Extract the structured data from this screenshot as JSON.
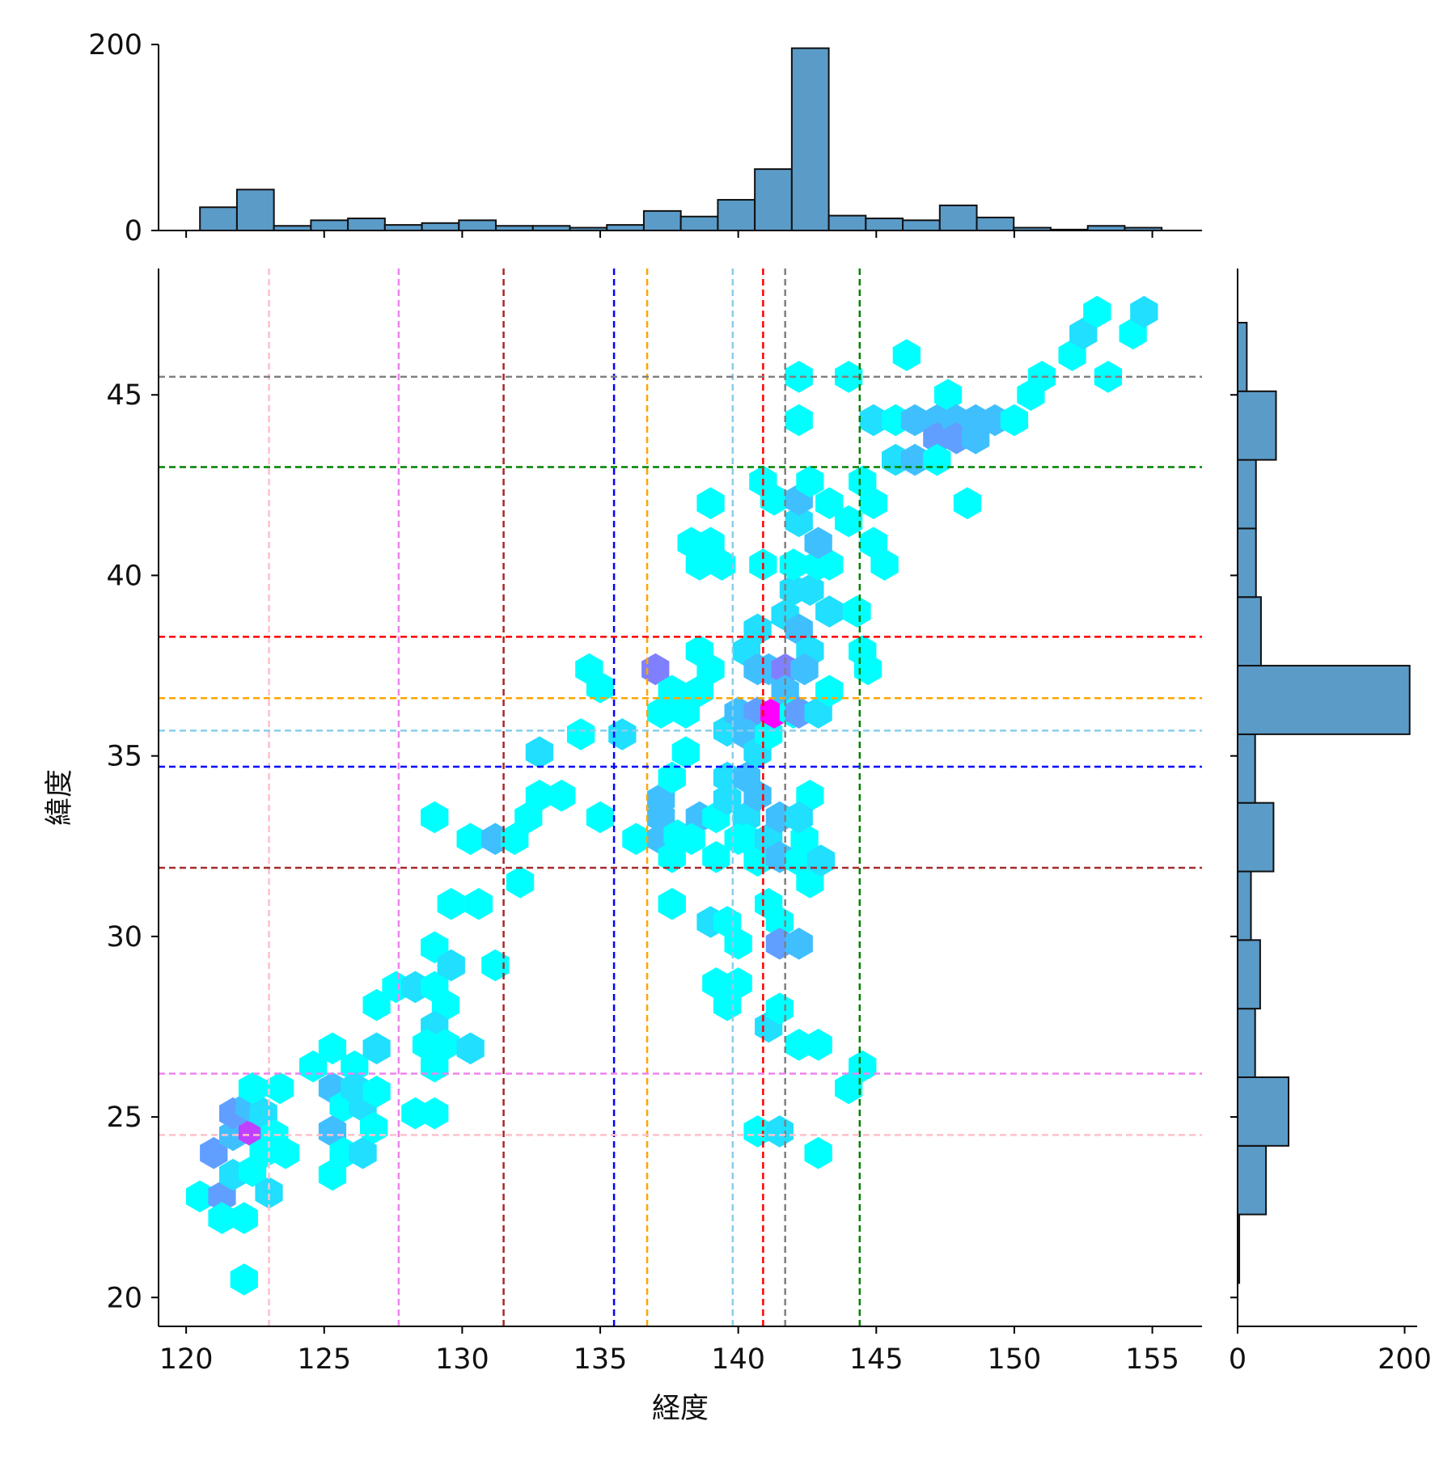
{
  "chart_data": {
    "type": "hexbin",
    "title": "",
    "xlabel": "経度",
    "ylabel": "緯度",
    "xlim": [
      119,
      156.8
    ],
    "ylim": [
      19.2,
      48.5
    ],
    "xticks": [
      120,
      125,
      130,
      135,
      140,
      145,
      150,
      155
    ],
    "yticks": [
      20,
      25,
      30,
      35,
      40,
      45
    ],
    "colormap": "cool",
    "colors": {
      "low": "#00ffff",
      "high": "#ff00ff",
      "hist": "#5b9bc8",
      "hist_edge": "#111111"
    },
    "grid": false,
    "legend": "none",
    "hexbin": {
      "hex_radius_lon": 0.58,
      "cells": [
        [
          120.5,
          22.8,
          1
        ],
        [
          121.3,
          22.8,
          4
        ],
        [
          122.1,
          22.2,
          1
        ],
        [
          121.3,
          22.2,
          1
        ],
        [
          121.7,
          23.4,
          2
        ],
        [
          121.0,
          24.0,
          4
        ],
        [
          121.7,
          24.5,
          3
        ],
        [
          122.4,
          24.6,
          7
        ],
        [
          121.7,
          25.1,
          4
        ],
        [
          122.3,
          25.3,
          3
        ],
        [
          122.8,
          25.1,
          2
        ],
        [
          122.4,
          25.8,
          1
        ],
        [
          123.4,
          25.8,
          1
        ],
        [
          122.8,
          24.0,
          1
        ],
        [
          123.6,
          24.0,
          1
        ],
        [
          123.2,
          24.5,
          1
        ],
        [
          122.4,
          23.5,
          1
        ],
        [
          123.0,
          22.9,
          2
        ],
        [
          122.1,
          20.5,
          1
        ],
        [
          124.6,
          26.4,
          1
        ],
        [
          125.3,
          26.9,
          1
        ],
        [
          125.3,
          25.8,
          3
        ],
        [
          125.7,
          25.3,
          1
        ],
        [
          125.3,
          24.6,
          3
        ],
        [
          125.7,
          24.0,
          1
        ],
        [
          125.3,
          23.4,
          1
        ],
        [
          126.1,
          26.4,
          1
        ],
        [
          126.1,
          25.8,
          2
        ],
        [
          126.4,
          25.3,
          2
        ],
        [
          126.4,
          24.0,
          2
        ],
        [
          126.9,
          25.7,
          1
        ],
        [
          126.8,
          24.7,
          1
        ],
        [
          126.9,
          26.9,
          2
        ],
        [
          126.9,
          28.1,
          1
        ],
        [
          127.6,
          28.6,
          1
        ],
        [
          128.3,
          28.6,
          2
        ],
        [
          129.0,
          28.6,
          1
        ],
        [
          129.4,
          28.1,
          1
        ],
        [
          129.0,
          27.5,
          2
        ],
        [
          128.7,
          27.0,
          1
        ],
        [
          129.4,
          27.0,
          1
        ],
        [
          129.0,
          26.4,
          1
        ],
        [
          130.3,
          26.9,
          2
        ],
        [
          128.3,
          25.1,
          1
        ],
        [
          129.0,
          25.1,
          1
        ],
        [
          129.0,
          29.7,
          1
        ],
        [
          129.6,
          29.2,
          2
        ],
        [
          131.2,
          29.2,
          1
        ],
        [
          129.6,
          30.9,
          1
        ],
        [
          130.6,
          30.9,
          1
        ],
        [
          129.0,
          33.3,
          1
        ],
        [
          130.3,
          32.7,
          1
        ],
        [
          131.2,
          32.7,
          3
        ],
        [
          131.9,
          32.7,
          1
        ],
        [
          132.1,
          31.5,
          1
        ],
        [
          132.4,
          33.3,
          1
        ],
        [
          132.8,
          33.9,
          1
        ],
        [
          133.6,
          33.9,
          1
        ],
        [
          132.8,
          35.1,
          2
        ],
        [
          134.3,
          35.6,
          1
        ],
        [
          135.0,
          33.3,
          1
        ],
        [
          134.6,
          37.4,
          1
        ],
        [
          135.0,
          36.9,
          1
        ],
        [
          135.8,
          35.6,
          2
        ],
        [
          136.3,
          32.7,
          1
        ],
        [
          137.0,
          37.4,
          5
        ],
        [
          137.2,
          36.2,
          1
        ],
        [
          137.6,
          36.8,
          1
        ],
        [
          137.2,
          33.8,
          3
        ],
        [
          137.2,
          33.3,
          3
        ],
        [
          137.2,
          32.7,
          3
        ],
        [
          137.6,
          32.2,
          1
        ],
        [
          137.8,
          32.8,
          1
        ],
        [
          137.6,
          34.4,
          1
        ],
        [
          137.6,
          30.9,
          1
        ],
        [
          138.1,
          36.2,
          1
        ],
        [
          138.6,
          36.8,
          1
        ],
        [
          138.6,
          37.9,
          1
        ],
        [
          139.0,
          37.4,
          1
        ],
        [
          138.1,
          35.1,
          1
        ],
        [
          138.6,
          33.3,
          3
        ],
        [
          138.3,
          32.7,
          1
        ],
        [
          139.2,
          33.3,
          1
        ],
        [
          139.2,
          32.2,
          1
        ],
        [
          138.3,
          40.9,
          1
        ],
        [
          139.0,
          40.9,
          1
        ],
        [
          138.6,
          40.3,
          1
        ],
        [
          139.4,
          40.3,
          1
        ],
        [
          139.0,
          42.0,
          1
        ],
        [
          139.0,
          30.4,
          2
        ],
        [
          139.6,
          35.7,
          2
        ],
        [
          140.0,
          36.2,
          3
        ],
        [
          139.6,
          34.4,
          2
        ],
        [
          140.3,
          34.4,
          3
        ],
        [
          139.6,
          33.8,
          2
        ],
        [
          140.3,
          33.3,
          2
        ],
        [
          140.7,
          33.9,
          3
        ],
        [
          139.6,
          30.4,
          1
        ],
        [
          140.0,
          29.8,
          1
        ],
        [
          139.2,
          28.7,
          1
        ],
        [
          140.0,
          28.7,
          1
        ],
        [
          139.6,
          28.1,
          1
        ],
        [
          140.3,
          37.9,
          2
        ],
        [
          140.7,
          37.4,
          3
        ],
        [
          140.7,
          38.5,
          2
        ],
        [
          140.7,
          36.2,
          4
        ],
        [
          140.3,
          35.6,
          3
        ],
        [
          140.7,
          35.1,
          2
        ],
        [
          140.3,
          32.7,
          1
        ],
        [
          140.7,
          32.1,
          1
        ],
        [
          140.0,
          32.7,
          1
        ],
        [
          141.1,
          35.6,
          1
        ],
        [
          141.1,
          32.7,
          2
        ],
        [
          141.5,
          33.3,
          3
        ],
        [
          141.5,
          32.2,
          3
        ],
        [
          141.1,
          30.9,
          1
        ],
        [
          141.5,
          30.4,
          1
        ],
        [
          141.5,
          29.8,
          4
        ],
        [
          142.2,
          29.8,
          3
        ],
        [
          141.1,
          27.5,
          2
        ],
        [
          141.5,
          28.0,
          1
        ],
        [
          140.7,
          24.6,
          1
        ],
        [
          141.5,
          24.6,
          2
        ],
        [
          140.9,
          40.3,
          1
        ],
        [
          140.9,
          42.6,
          1
        ],
        [
          141.3,
          42.1,
          1
        ],
        [
          141.1,
          37.4,
          3
        ],
        [
          141.3,
          36.2,
          9
        ],
        [
          141.7,
          37.4,
          5
        ],
        [
          141.7,
          36.8,
          3
        ],
        [
          142.0,
          36.2,
          1
        ],
        [
          141.7,
          38.9,
          2
        ],
        [
          142.2,
          38.5,
          3
        ],
        [
          142.0,
          39.6,
          2
        ],
        [
          142.0,
          40.3,
          1
        ],
        [
          142.2,
          41.5,
          2
        ],
        [
          142.2,
          42.1,
          3
        ],
        [
          142.6,
          37.9,
          2
        ],
        [
          142.4,
          37.4,
          3
        ],
        [
          142.2,
          36.2,
          4
        ],
        [
          142.4,
          32.7,
          1
        ],
        [
          142.2,
          32.1,
          1
        ],
        [
          142.6,
          33.9,
          1
        ],
        [
          142.6,
          31.5,
          1
        ],
        [
          142.2,
          33.3,
          2
        ],
        [
          143.0,
          32.1,
          2
        ],
        [
          142.9,
          36.2,
          2
        ],
        [
          143.3,
          36.8,
          1
        ],
        [
          142.6,
          39.6,
          2
        ],
        [
          143.3,
          39.0,
          2
        ],
        [
          142.9,
          40.3,
          1
        ],
        [
          143.3,
          40.3,
          1
        ],
        [
          142.9,
          40.9,
          3
        ],
        [
          142.6,
          42.6,
          1
        ],
        [
          143.3,
          42.0,
          1
        ],
        [
          142.2,
          44.3,
          1
        ],
        [
          142.2,
          45.5,
          1
        ],
        [
          142.2,
          27.0,
          1
        ],
        [
          142.9,
          27.0,
          1
        ],
        [
          142.9,
          24.0,
          1
        ],
        [
          144.0,
          45.5,
          1
        ],
        [
          144.0,
          25.8,
          1
        ],
        [
          144.5,
          26.4,
          1
        ],
        [
          144.3,
          39.0,
          1
        ],
        [
          144.5,
          37.9,
          1
        ],
        [
          144.7,
          37.4,
          1
        ],
        [
          144.0,
          41.5,
          1
        ],
        [
          144.5,
          42.6,
          1
        ],
        [
          144.9,
          42.0,
          1
        ],
        [
          144.9,
          40.9,
          1
        ],
        [
          145.3,
          40.3,
          1
        ],
        [
          144.9,
          44.3,
          2
        ],
        [
          145.7,
          44.3,
          1
        ],
        [
          145.7,
          43.2,
          2
        ],
        [
          146.4,
          44.3,
          3
        ],
        [
          146.4,
          43.2,
          3
        ],
        [
          146.1,
          46.1,
          1
        ],
        [
          147.2,
          44.3,
          3
        ],
        [
          147.2,
          43.8,
          4
        ],
        [
          147.2,
          43.2,
          1
        ],
        [
          147.6,
          45.0,
          1
        ],
        [
          147.9,
          44.3,
          3
        ],
        [
          147.9,
          43.8,
          4
        ],
        [
          148.3,
          42.0,
          1
        ],
        [
          148.6,
          44.3,
          3
        ],
        [
          148.6,
          43.8,
          3
        ],
        [
          149.3,
          44.3,
          3
        ],
        [
          150.0,
          44.3,
          1
        ],
        [
          150.6,
          45.0,
          1
        ],
        [
          151.0,
          45.5,
          1
        ],
        [
          152.1,
          46.1,
          1
        ],
        [
          152.5,
          46.7,
          2
        ],
        [
          153.0,
          47.3,
          1
        ],
        [
          153.4,
          45.5,
          1
        ],
        [
          154.3,
          46.7,
          1
        ],
        [
          154.7,
          47.3,
          2
        ]
      ]
    },
    "vlines": [
      {
        "x": 123.0,
        "color": "pink"
      },
      {
        "x": 127.7,
        "color": "violet"
      },
      {
        "x": 131.5,
        "color": "brown"
      },
      {
        "x": 135.5,
        "color": "blue"
      },
      {
        "x": 136.7,
        "color": "orange"
      },
      {
        "x": 139.8,
        "color": "skyblue"
      },
      {
        "x": 140.9,
        "color": "red"
      },
      {
        "x": 141.7,
        "color": "gray"
      },
      {
        "x": 144.4,
        "color": "green"
      }
    ],
    "hlines": [
      {
        "y": 45.5,
        "color": "gray"
      },
      {
        "y": 43.0,
        "color": "green"
      },
      {
        "y": 38.3,
        "color": "red"
      },
      {
        "y": 36.6,
        "color": "orange"
      },
      {
        "y": 35.7,
        "color": "skyblue"
      },
      {
        "y": 34.7,
        "color": "blue"
      },
      {
        "y": 31.9,
        "color": "brown"
      },
      {
        "y": 26.2,
        "color": "violet"
      },
      {
        "y": 24.5,
        "color": "pink"
      }
    ],
    "line_colors": {
      "pink": "#ffc0cb",
      "violet": "#ee82ee",
      "brown": "#a52a2a",
      "blue": "#0000ff",
      "orange": "#ffa500",
      "skyblue": "#87ceeb",
      "red": "#ff0000",
      "gray": "#808080",
      "green": "#008000"
    },
    "top_histogram": {
      "ylim": [
        0,
        200
      ],
      "yticks": [
        0,
        200
      ],
      "edges": [
        120.5,
        121.84,
        123.18,
        124.52,
        125.86,
        127.2,
        128.54,
        129.88,
        131.22,
        132.56,
        133.9,
        135.24,
        136.58,
        137.92,
        139.26,
        140.6,
        141.94,
        143.28,
        144.62,
        145.96,
        147.3,
        148.64,
        149.98,
        151.32,
        152.66,
        154.0,
        155.34
      ],
      "counts": [
        25,
        44,
        5,
        11,
        13,
        6,
        8,
        11,
        5,
        5,
        3,
        6,
        21,
        15,
        33,
        66,
        196,
        16,
        13,
        11,
        27,
        14,
        3,
        1,
        5,
        3
      ]
    },
    "right_histogram": {
      "xlim": [
        0,
        215
      ],
      "xticks": [
        0,
        200
      ],
      "edges": [
        20.4,
        22.3,
        24.2,
        26.1,
        28.0,
        29.9,
        31.8,
        33.7,
        35.6,
        37.5,
        39.4,
        41.3,
        43.2,
        45.1,
        47.0
      ],
      "counts": [
        2,
        34,
        61,
        21,
        27,
        16,
        43,
        21,
        206,
        28,
        22,
        22,
        46,
        11
      ]
    }
  }
}
